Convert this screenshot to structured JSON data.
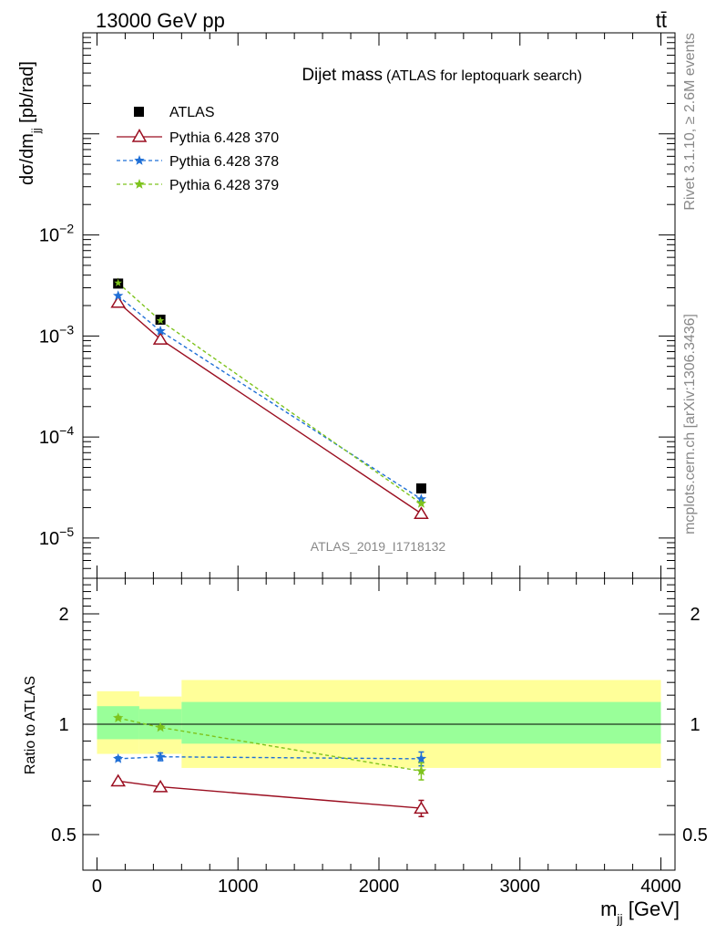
{
  "header": {
    "energy_label": "13000 GeV pp",
    "process_label": "tt̄"
  },
  "side_text": {
    "rivet": "Rivet 3.1.10, ≥ 2.6M events",
    "mcplots": "mcplots.cern.ch [arXiv:1306.3436]"
  },
  "colors": {
    "atlas": "#000000",
    "py370": "#9b0e20",
    "py378": "#1f6fd6",
    "py379": "#7ec31d",
    "band_inner": "#99ff99",
    "band_outer": "#ffff99",
    "watermark": "#888888"
  },
  "chart_data": [
    {
      "type": "line",
      "title": "Dijet mass",
      "subtitle": "(ATLAS for leptoquark search)",
      "xlabel": "",
      "ylabel": "dσ/dm_jj [pb/rad]",
      "yscale": "log",
      "ylim": [
        4e-06,
        1.0
      ],
      "yticks": [
        {
          "value": 1e-05,
          "base": "10",
          "exp": "−5"
        },
        {
          "value": 0.0001,
          "base": "10",
          "exp": "−4"
        },
        {
          "value": 0.001,
          "base": "10",
          "exp": "−3"
        },
        {
          "value": 0.01,
          "base": "10",
          "exp": "−2"
        }
      ],
      "watermark": "ATLAS_2019_I1718132",
      "legend_placement": "top-left",
      "x": [
        150,
        450,
        2300
      ],
      "series": [
        {
          "name": "ATLAS",
          "marker": "square",
          "values": [
            0.0033,
            0.00145,
            3.1e-05
          ]
        },
        {
          "name": "Pythia 6.428 370",
          "marker": "triangle",
          "values": [
            0.00215,
            0.00093,
            1.75e-05
          ]
        },
        {
          "name": "Pythia 6.428 378",
          "marker": "star",
          "values": [
            0.0025,
            0.00112,
            2.43e-05
          ]
        },
        {
          "name": "Pythia 6.428 379",
          "marker": "star",
          "values": [
            0.00335,
            0.00142,
            2.2e-05
          ]
        }
      ]
    },
    {
      "type": "line",
      "xlabel": "m_jj [GeV]",
      "ylabel": "Ratio to ATLAS",
      "yscale": "log",
      "ylim": [
        0.4,
        2.5
      ],
      "yticks": [
        0.5,
        1,
        2
      ],
      "xlim": [
        -100,
        4100
      ],
      "xticks": [
        0,
        1000,
        2000,
        3000,
        4000
      ],
      "x": [
        150,
        450,
        2300
      ],
      "bands": [
        {
          "x0": 0,
          "x1": 300,
          "inner": [
            0.91,
            1.12
          ],
          "outer": [
            0.83,
            1.23
          ]
        },
        {
          "x0": 300,
          "x1": 600,
          "inner": [
            0.91,
            1.1
          ],
          "outer": [
            0.83,
            1.19
          ]
        },
        {
          "x0": 600,
          "x1": 4000,
          "inner": [
            0.885,
            1.15
          ],
          "outer": [
            0.76,
            1.32
          ]
        }
      ],
      "series": [
        {
          "name": "Pythia 6.428 370",
          "values": [
            0.7,
            0.675,
            0.59
          ],
          "errors": [
            0.01,
            0.01,
            0.03
          ]
        },
        {
          "name": "Pythia 6.428 378",
          "values": [
            0.805,
            0.815,
            0.805
          ],
          "errors": [
            0.01,
            0.02,
            0.035
          ]
        },
        {
          "name": "Pythia 6.428 379",
          "values": [
            1.04,
            0.98,
            0.745
          ],
          "errors": [
            0.01,
            0.01,
            0.04
          ]
        }
      ]
    }
  ]
}
